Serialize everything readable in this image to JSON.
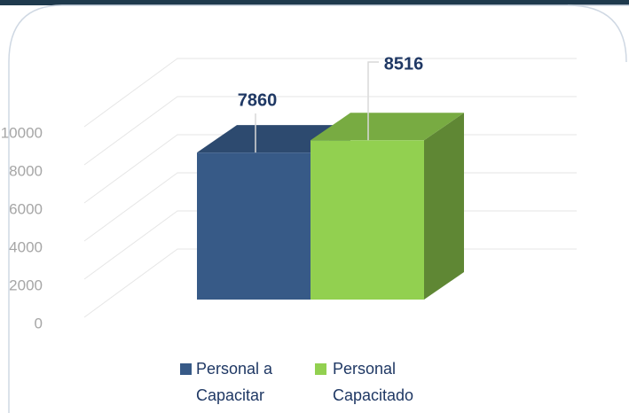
{
  "chart_data": {
    "type": "bar3d",
    "categories": [
      null
    ],
    "series": [
      {
        "name": "Personal a Capacitar",
        "color": "#375a87",
        "values": [
          7860
        ]
      },
      {
        "name": "Personal Capacitado",
        "color": "#92d050",
        "values": [
          8516
        ]
      }
    ],
    "ylim": [
      0,
      10000
    ],
    "yticks": [
      0,
      2000,
      4000,
      6000,
      8000,
      10000
    ],
    "grid": true,
    "legend": "bottom"
  }
}
